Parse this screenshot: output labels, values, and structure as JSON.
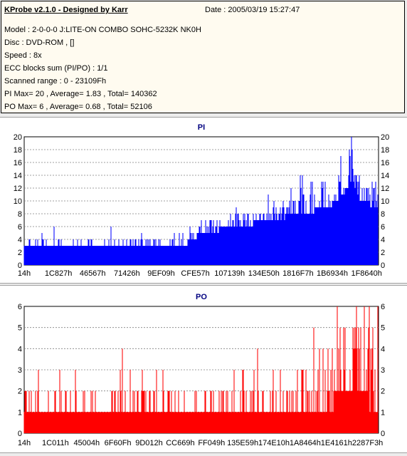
{
  "header": {
    "title": "KProbe v2.1.0 - Designed by Karr",
    "date": "Date : 2005/03/19 15:27:47",
    "lines": [
      "Model : 2-0-0-0 J:LITE-ON COMBO SOHC-5232K NK0H",
      "Disc : DVD-ROM ,  []",
      "Speed : 8x",
      "ECC blocks sum (PI/PO) : 1/1",
      "Scanned range : 0 - 23109Fh",
      "PI Max= 20 , Average= 1.83 , Total= 140362",
      "PO Max= 6 , Average= 0.68 , Total= 52106"
    ]
  },
  "chart_data": [
    {
      "type": "area",
      "title": "PI",
      "color": "#0000ff",
      "ylim": [
        0,
        20
      ],
      "yticks": [
        0,
        2,
        4,
        6,
        8,
        10,
        12,
        14,
        16,
        18,
        20
      ],
      "xticks": [
        "14h",
        "1C827h",
        "46567h",
        "71426h",
        "9EF09h",
        "CFE57h",
        "107139h",
        "134E50h",
        "1816F7h",
        "1B6934h",
        "1F8640h"
      ],
      "profile": [
        {
          "x": 0.0,
          "base": 3,
          "peak": 4
        },
        {
          "x": 0.1,
          "base": 3,
          "peak": 4
        },
        {
          "x": 0.3,
          "base": 3,
          "peak": 4
        },
        {
          "x": 0.45,
          "base": 3,
          "peak": 5
        },
        {
          "x": 0.5,
          "base": 5,
          "peak": 7
        },
        {
          "x": 0.6,
          "base": 6,
          "peak": 8
        },
        {
          "x": 0.7,
          "base": 7,
          "peak": 9
        },
        {
          "x": 0.78,
          "base": 8,
          "peak": 12
        },
        {
          "x": 0.86,
          "base": 9,
          "peak": 14
        },
        {
          "x": 0.9,
          "base": 11,
          "peak": 17
        },
        {
          "x": 0.93,
          "base": 13,
          "peak": 20
        },
        {
          "x": 0.95,
          "base": 10,
          "peak": 14
        },
        {
          "x": 1.0,
          "base": 9,
          "peak": 13
        }
      ],
      "max": 20
    },
    {
      "type": "area",
      "title": "PO",
      "color": "#ff0000",
      "ylim": [
        0,
        6
      ],
      "yticks": [
        0,
        1,
        2,
        3,
        4,
        5,
        6
      ],
      "xticks": [
        "14h",
        "1C011h",
        "45004h",
        "6F60Fh",
        "9D012h",
        "CC669h",
        "FF049h",
        "135E59h",
        "174E10h",
        "1A8464h",
        "1E4161h",
        "2287F3h"
      ],
      "profile": [
        {
          "x": 0.0,
          "base": 1,
          "peak": 2
        },
        {
          "x": 0.5,
          "base": 1,
          "peak": 2
        },
        {
          "x": 0.8,
          "base": 1,
          "peak": 3
        },
        {
          "x": 0.85,
          "base": 1,
          "peak": 4
        },
        {
          "x": 0.9,
          "base": 2,
          "peak": 5
        },
        {
          "x": 0.95,
          "base": 2,
          "peak": 6
        },
        {
          "x": 1.0,
          "base": 1,
          "peak": 4
        }
      ],
      "max": 6
    }
  ]
}
